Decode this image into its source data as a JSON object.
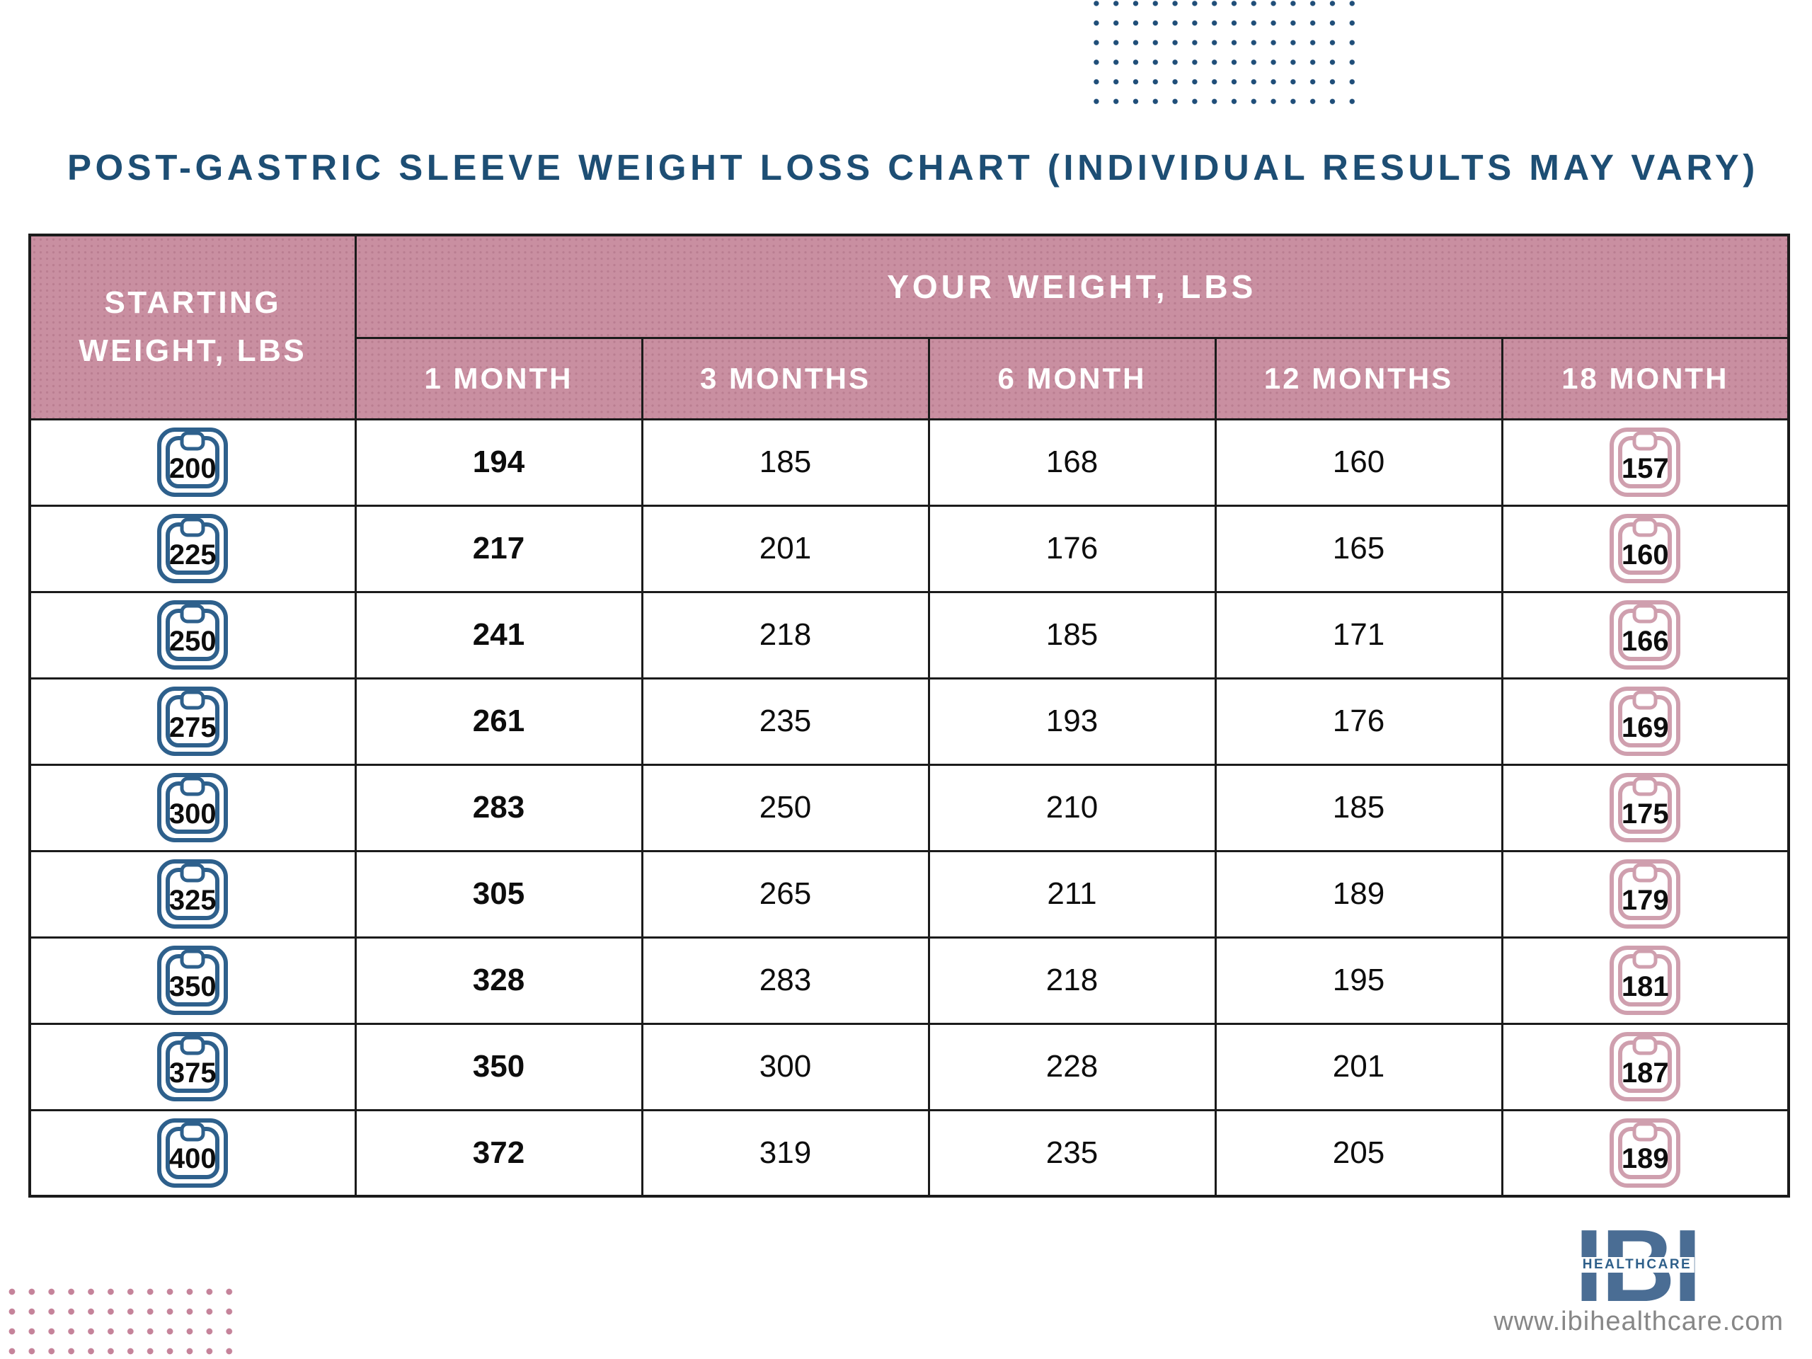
{
  "title": "POST-GASTRIC SLEEVE WEIGHT LOSS CHART (INDIVIDUAL RESULTS MAY VARY)",
  "colors": {
    "title_blue": "#1d4e74",
    "header_pink": "#c98fa1",
    "header_text": "#ffffff",
    "icon_blue": "#2e608c",
    "icon_pink": "#cf9fae",
    "dots_blue": "#1f4e79",
    "dots_pink": "#c5839a",
    "border_dark": "#1b1b1b",
    "number_black": "#0d0d0d",
    "logo_blue": "#4a6d94",
    "logo_text_blue": "#2e5f8a",
    "url_gray": "#878787"
  },
  "table": {
    "corner_header": "STARTING WEIGHT, LBS",
    "group_header": "YOUR WEIGHT, LBS",
    "month_headers": [
      "1 MONTH",
      "3 MONTHS",
      "6 MONTH",
      "12 MONTHS",
      "18 MONTH"
    ],
    "rows": [
      {
        "start": "200",
        "values": [
          "194",
          "185",
          "168",
          "160"
        ],
        "end": "157"
      },
      {
        "start": "225",
        "values": [
          "217",
          "201",
          "176",
          "165"
        ],
        "end": "160"
      },
      {
        "start": "250",
        "values": [
          "241",
          "218",
          "185",
          "171"
        ],
        "end": "166"
      },
      {
        "start": "275",
        "values": [
          "261",
          "235",
          "193",
          "176"
        ],
        "end": "169"
      },
      {
        "start": "300",
        "values": [
          "283",
          "250",
          "210",
          "185"
        ],
        "end": "175"
      },
      {
        "start": "325",
        "values": [
          "305",
          "265",
          "211",
          "189"
        ],
        "end": "179"
      },
      {
        "start": "350",
        "values": [
          "328",
          "283",
          "218",
          "195"
        ],
        "end": "181"
      },
      {
        "start": "375",
        "values": [
          "350",
          "300",
          "228",
          "201"
        ],
        "end": "187"
      },
      {
        "start": "400",
        "values": [
          "372",
          "319",
          "235",
          "205"
        ],
        "end": "189"
      }
    ]
  },
  "footer": {
    "logo_text": "IBI",
    "logo_sub": "HEALTHCARE",
    "url": "www.ibihealthcare.com"
  },
  "chart_data": {
    "type": "table",
    "title": "POST-GASTRIC SLEEVE WEIGHT LOSS CHART (INDIVIDUAL RESULTS MAY VARY)",
    "group_header": "YOUR WEIGHT, LBS",
    "columns": [
      "STARTING WEIGHT, LBS",
      "1 MONTH",
      "3 MONTHS",
      "6 MONTH",
      "12 MONTHS",
      "18 MONTH"
    ],
    "rows": [
      [
        200,
        194,
        185,
        168,
        160,
        157
      ],
      [
        225,
        217,
        201,
        176,
        165,
        160
      ],
      [
        250,
        241,
        218,
        185,
        171,
        166
      ],
      [
        275,
        261,
        235,
        193,
        176,
        169
      ],
      [
        300,
        283,
        250,
        210,
        185,
        175
      ],
      [
        325,
        305,
        265,
        211,
        189,
        179
      ],
      [
        350,
        328,
        283,
        218,
        195,
        181
      ],
      [
        375,
        350,
        300,
        228,
        201,
        187
      ],
      [
        400,
        372,
        319,
        235,
        205,
        189
      ]
    ]
  }
}
